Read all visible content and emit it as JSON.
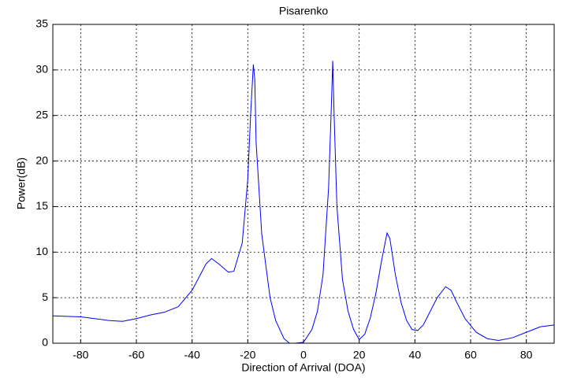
{
  "chart_data": {
    "type": "line",
    "title": "Pisarenko",
    "x_label": "Direction of Arrival (DOA)",
    "y_label": "Power(dB)",
    "x": [
      -90,
      -80,
      -75,
      -70,
      -65,
      -60,
      -55,
      -50,
      -45,
      -40,
      -35,
      -33,
      -30,
      -27,
      -25,
      -22,
      -20,
      -19,
      -18,
      -17.5,
      -17,
      -15,
      -12,
      -10,
      -7,
      -5,
      -3,
      0,
      3,
      5,
      7,
      9,
      10,
      10.5,
      11,
      12,
      14,
      16,
      18,
      20,
      22,
      24,
      26,
      28,
      30,
      31,
      33,
      35,
      37,
      39,
      41,
      43,
      45,
      48,
      51,
      53,
      55,
      58,
      62,
      66,
      70,
      75,
      80,
      85,
      90
    ],
    "series": [
      {
        "name": "Pisarenko",
        "color": "#0000ff",
        "values": [
          3.0,
          2.9,
          2.7,
          2.5,
          2.4,
          2.7,
          3.1,
          3.4,
          4.0,
          5.8,
          8.7,
          9.3,
          8.6,
          7.8,
          7.9,
          11,
          18,
          25,
          30.6,
          29,
          22,
          12,
          5,
          2.5,
          0.5,
          0,
          0,
          0.1,
          1.5,
          3.5,
          7.5,
          17,
          26,
          31,
          25,
          15,
          7,
          3.5,
          1.5,
          0.4,
          1,
          2.8,
          5.5,
          9,
          12.1,
          11.5,
          7.5,
          4.5,
          2.5,
          1.5,
          1.4,
          2,
          3.2,
          5,
          6.2,
          5.8,
          4.5,
          2.7,
          1.2,
          0.5,
          0.3,
          0.6,
          1.2,
          1.8,
          2.0
        ]
      }
    ],
    "xlim": [
      -90,
      90
    ],
    "xticks": [
      -80,
      -60,
      -40,
      -20,
      0,
      20,
      40,
      60,
      80
    ],
    "ylim": [
      0,
      35
    ],
    "yticks": [
      0,
      5,
      10,
      15,
      20,
      25,
      30,
      35
    ],
    "grid": true
  }
}
